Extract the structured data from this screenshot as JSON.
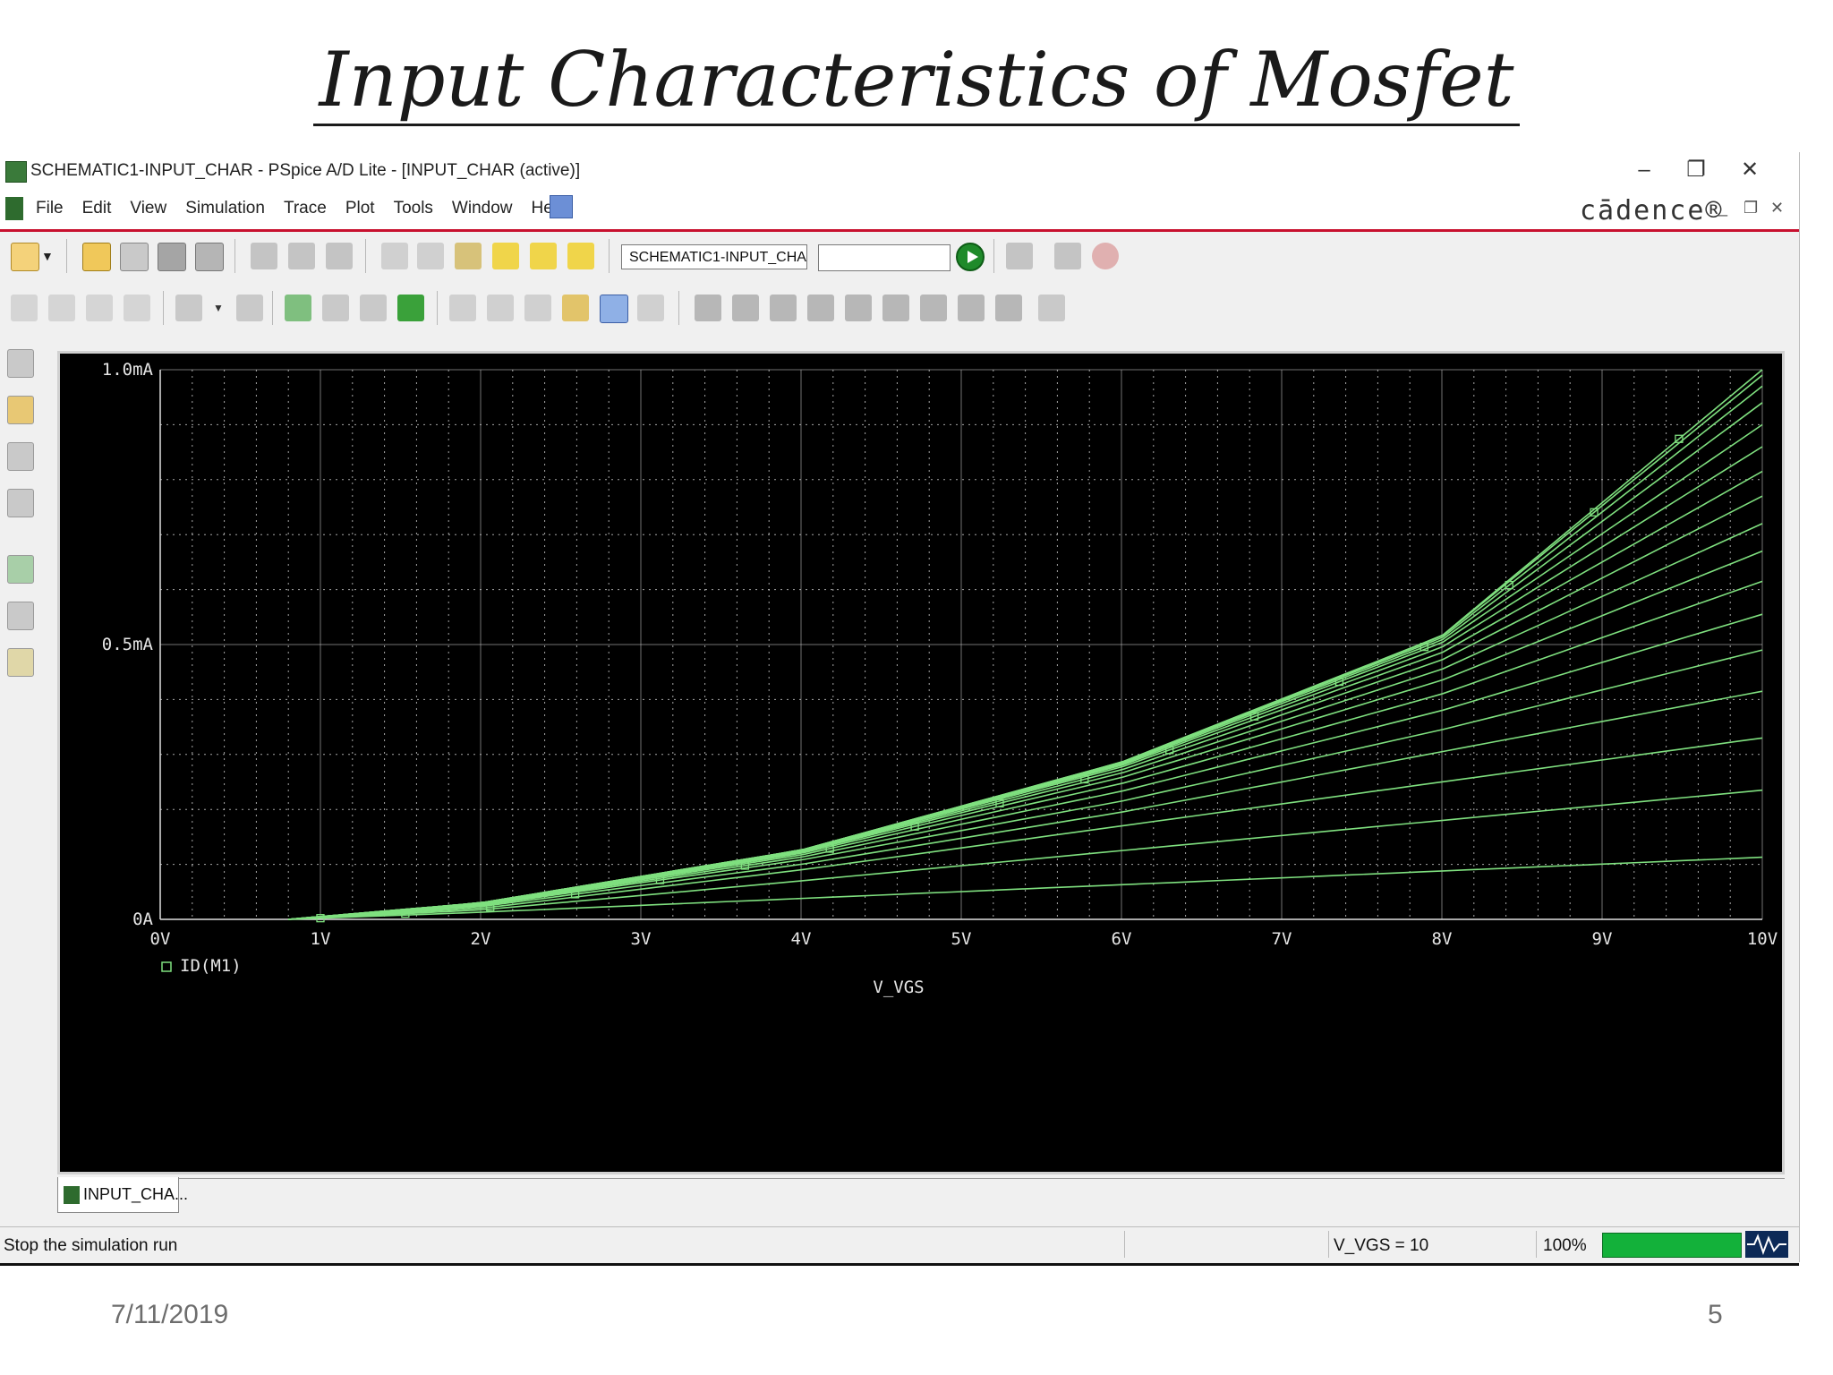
{
  "slide": {
    "title": "Input Characteristics of Mosfet",
    "date": "7/11/2019",
    "page_number": "5"
  },
  "window": {
    "caption": "SCHEMATIC1-INPUT_CHAR - PSpice A/D Lite - [INPUT_CHAR (active)]",
    "controls": [
      "minimize-icon",
      "restore-icon",
      "close-icon"
    ],
    "brand": "cādence®",
    "menu": [
      "File",
      "Edit",
      "View",
      "Simulation",
      "Trace",
      "Plot",
      "Tools",
      "Window",
      "Help"
    ],
    "mdi_controls": [
      "minimize-icon",
      "restore-icon",
      "close-icon"
    ]
  },
  "toolbar": {
    "profile_combo_value": "SCHEMATIC1-INPUT_CHA",
    "second_combo_value": "",
    "run_icon": "run-simulation-icon"
  },
  "tabs": [
    {
      "label": "INPUT_CHA..."
    }
  ],
  "status": {
    "message": "Stop the simulation run",
    "vgs_readout": "V_VGS =  10",
    "progress_text": "100%",
    "progress": 1.0
  },
  "colors": {
    "trace": "#7fe07f",
    "plot_background": "#000000",
    "grid": "#d0d0d0",
    "progress": "#13b13a",
    "menu_accent": "#c8102e"
  },
  "chart_data": {
    "type": "line",
    "xlabel": "V_VGS",
    "ylabel": "",
    "xlim": [
      0,
      10
    ],
    "ylim": [
      0,
      1.0
    ],
    "x_ticks": [
      "0V",
      "1V",
      "2V",
      "3V",
      "4V",
      "5V",
      "6V",
      "7V",
      "8V",
      "9V",
      "10V"
    ],
    "y_ticks": [
      {
        "value": 0,
        "label": "0A"
      },
      {
        "value": 0.5,
        "label": "0.5mA"
      },
      {
        "value": 1.0,
        "label": "1.0mA"
      }
    ],
    "legend": [
      {
        "name": "ID(M1)",
        "marker": "square"
      }
    ],
    "grid": true,
    "series": [
      {
        "x": [
          0.8,
          2.0,
          4.0,
          6.0,
          8.0,
          10.0
        ],
        "values": [
          0.0,
          0.013,
          0.038,
          0.063,
          0.088,
          0.113
        ]
      },
      {
        "x": [
          0.8,
          2.0,
          4.0,
          6.0,
          8.0,
          10.0
        ],
        "values": [
          0.0,
          0.017,
          0.07,
          0.125,
          0.18,
          0.235
        ]
      },
      {
        "x": [
          0.8,
          2.0,
          4.0,
          6.0,
          8.0,
          10.0
        ],
        "values": [
          0.0,
          0.02,
          0.09,
          0.17,
          0.25,
          0.33
        ]
      },
      {
        "x": [
          0.8,
          2.0,
          4.0,
          6.0,
          8.0,
          10.0
        ],
        "values": [
          0.0,
          0.023,
          0.1,
          0.195,
          0.305,
          0.415
        ]
      },
      {
        "x": [
          0.8,
          2.0,
          4.0,
          6.0,
          8.0,
          10.0
        ],
        "values": [
          0.0,
          0.025,
          0.108,
          0.215,
          0.345,
          0.49
        ]
      },
      {
        "x": [
          0.8,
          2.0,
          4.0,
          6.0,
          8.0,
          10.0
        ],
        "values": [
          0.0,
          0.026,
          0.113,
          0.233,
          0.38,
          0.555
        ]
      },
      {
        "x": [
          0.8,
          2.0,
          4.0,
          6.0,
          8.0,
          10.0
        ],
        "values": [
          0.0,
          0.027,
          0.117,
          0.247,
          0.41,
          0.615
        ]
      },
      {
        "x": [
          0.8,
          2.0,
          4.0,
          6.0,
          8.0,
          10.0
        ],
        "values": [
          0.0,
          0.028,
          0.12,
          0.258,
          0.435,
          0.67
        ]
      },
      {
        "x": [
          0.8,
          2.0,
          4.0,
          6.0,
          8.0,
          10.0
        ],
        "values": [
          0.0,
          0.028,
          0.122,
          0.266,
          0.455,
          0.72
        ]
      },
      {
        "x": [
          0.8,
          2.0,
          4.0,
          6.0,
          8.0,
          10.0
        ],
        "values": [
          0.0,
          0.029,
          0.123,
          0.272,
          0.472,
          0.77
        ]
      },
      {
        "x": [
          0.8,
          2.0,
          4.0,
          6.0,
          8.0,
          10.0
        ],
        "values": [
          0.0,
          0.029,
          0.124,
          0.277,
          0.485,
          0.815
        ]
      },
      {
        "x": [
          0.8,
          2.0,
          4.0,
          6.0,
          8.0,
          10.0
        ],
        "values": [
          0.0,
          0.029,
          0.125,
          0.28,
          0.495,
          0.86
        ]
      },
      {
        "x": [
          0.8,
          2.0,
          4.0,
          6.0,
          8.0,
          10.0
        ],
        "values": [
          0.0,
          0.03,
          0.125,
          0.282,
          0.503,
          0.9
        ]
      },
      {
        "x": [
          0.8,
          2.0,
          4.0,
          6.0,
          8.0,
          10.0
        ],
        "values": [
          0.0,
          0.03,
          0.126,
          0.284,
          0.508,
          0.94
        ]
      },
      {
        "x": [
          0.8,
          2.0,
          4.0,
          6.0,
          8.0,
          10.0
        ],
        "values": [
          0.0,
          0.03,
          0.126,
          0.285,
          0.512,
          0.97
        ]
      },
      {
        "x": [
          0.8,
          2.0,
          4.0,
          6.0,
          8.0,
          10.0
        ],
        "values": [
          0.0,
          0.03,
          0.126,
          0.286,
          0.515,
          0.99
        ]
      },
      {
        "x": [
          0.8,
          2.0,
          4.0,
          6.0,
          8.0,
          10.0
        ],
        "values": [
          0.0,
          0.03,
          0.126,
          0.286,
          0.516,
          1.0
        ]
      }
    ]
  }
}
